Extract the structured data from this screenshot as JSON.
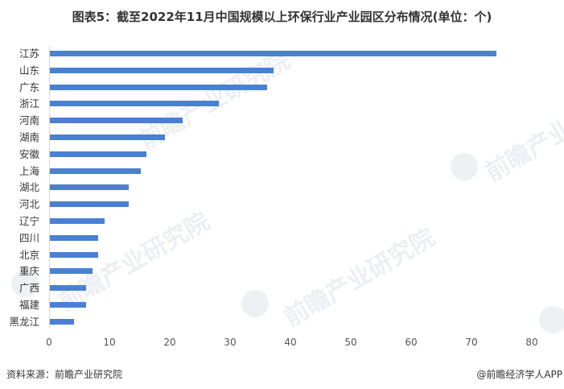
{
  "title": "图表5：截至2022年11月中国规模以上环保行业产业园区分布情况(单位：个)",
  "chart_data": {
    "type": "bar",
    "orientation": "horizontal",
    "title": "图表5：截至2022年11月中国规模以上环保行业产业园区分布情况(单位：个)",
    "xlabel": "",
    "ylabel": "",
    "categories": [
      "江苏",
      "山东",
      "广东",
      "浙江",
      "河南",
      "湖南",
      "安徽",
      "上海",
      "湖北",
      "河北",
      "辽宁",
      "四川",
      "北京",
      "重庆",
      "广西",
      "福建",
      "黑龙江"
    ],
    "values": [
      74,
      37,
      36,
      28,
      22,
      19,
      16,
      15,
      13,
      13,
      9,
      8,
      8,
      7,
      6,
      6,
      4
    ],
    "xlim": [
      0,
      80
    ],
    "xticks": [
      "0",
      "10",
      "20",
      "30",
      "40",
      "50",
      "60",
      "70",
      "80"
    ],
    "grid": false,
    "legend": null,
    "bar_color": "#4a80d4"
  },
  "footer": {
    "source": "资料来源：前瞻产业研究院",
    "credit": "@前瞻经济学人APP"
  },
  "watermark": {
    "text": "前瞻产业研究院"
  }
}
